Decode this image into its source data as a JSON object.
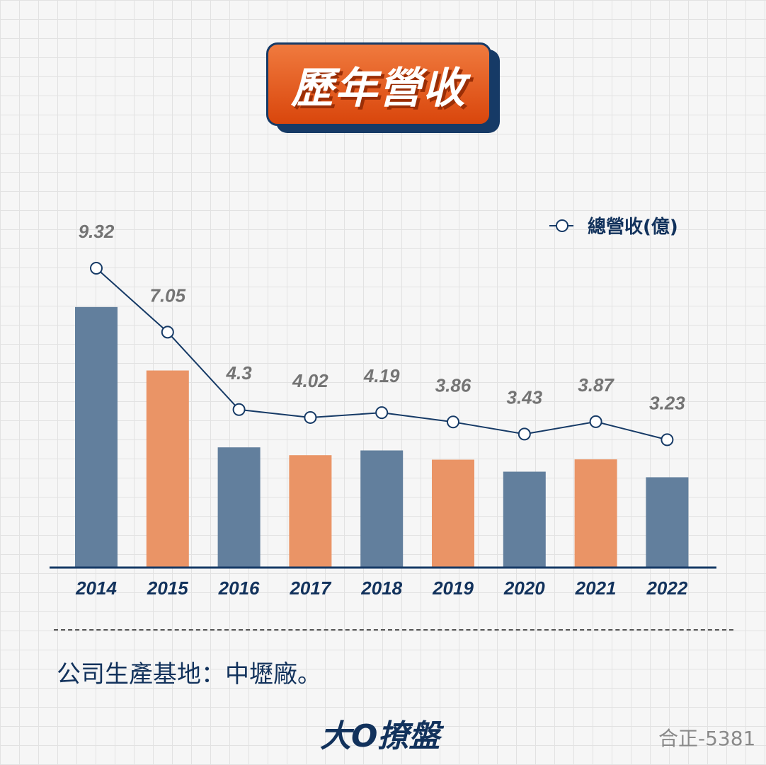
{
  "title": "歷年營收",
  "chart_data": {
    "type": "bar",
    "categories": [
      "2014",
      "2015",
      "2016",
      "2017",
      "2018",
      "2019",
      "2020",
      "2021",
      "2022"
    ],
    "series": [
      {
        "name": "總營收(億)",
        "type": "line",
        "values": [
          9.32,
          7.05,
          4.3,
          4.02,
          4.19,
          3.86,
          3.43,
          3.87,
          3.23
        ]
      }
    ],
    "bar_values": [
      9.32,
      7.05,
      4.3,
      4.02,
      4.19,
      3.86,
      3.43,
      3.87,
      3.23
    ],
    "data_labels": [
      "9.32",
      "7.05",
      "4.3",
      "4.02",
      "4.19",
      "3.86",
      "3.43",
      "3.87",
      "3.23"
    ],
    "legend": {
      "label": "總營收(億)",
      "position": "top-right"
    },
    "bar_colors": [
      "#627f9d",
      "#ea9466"
    ],
    "line_color": "#163a66",
    "grid": true
  },
  "note": "公司生產基地：中壢廠。",
  "brand": "大O撩盤",
  "stock": "合正-5381"
}
